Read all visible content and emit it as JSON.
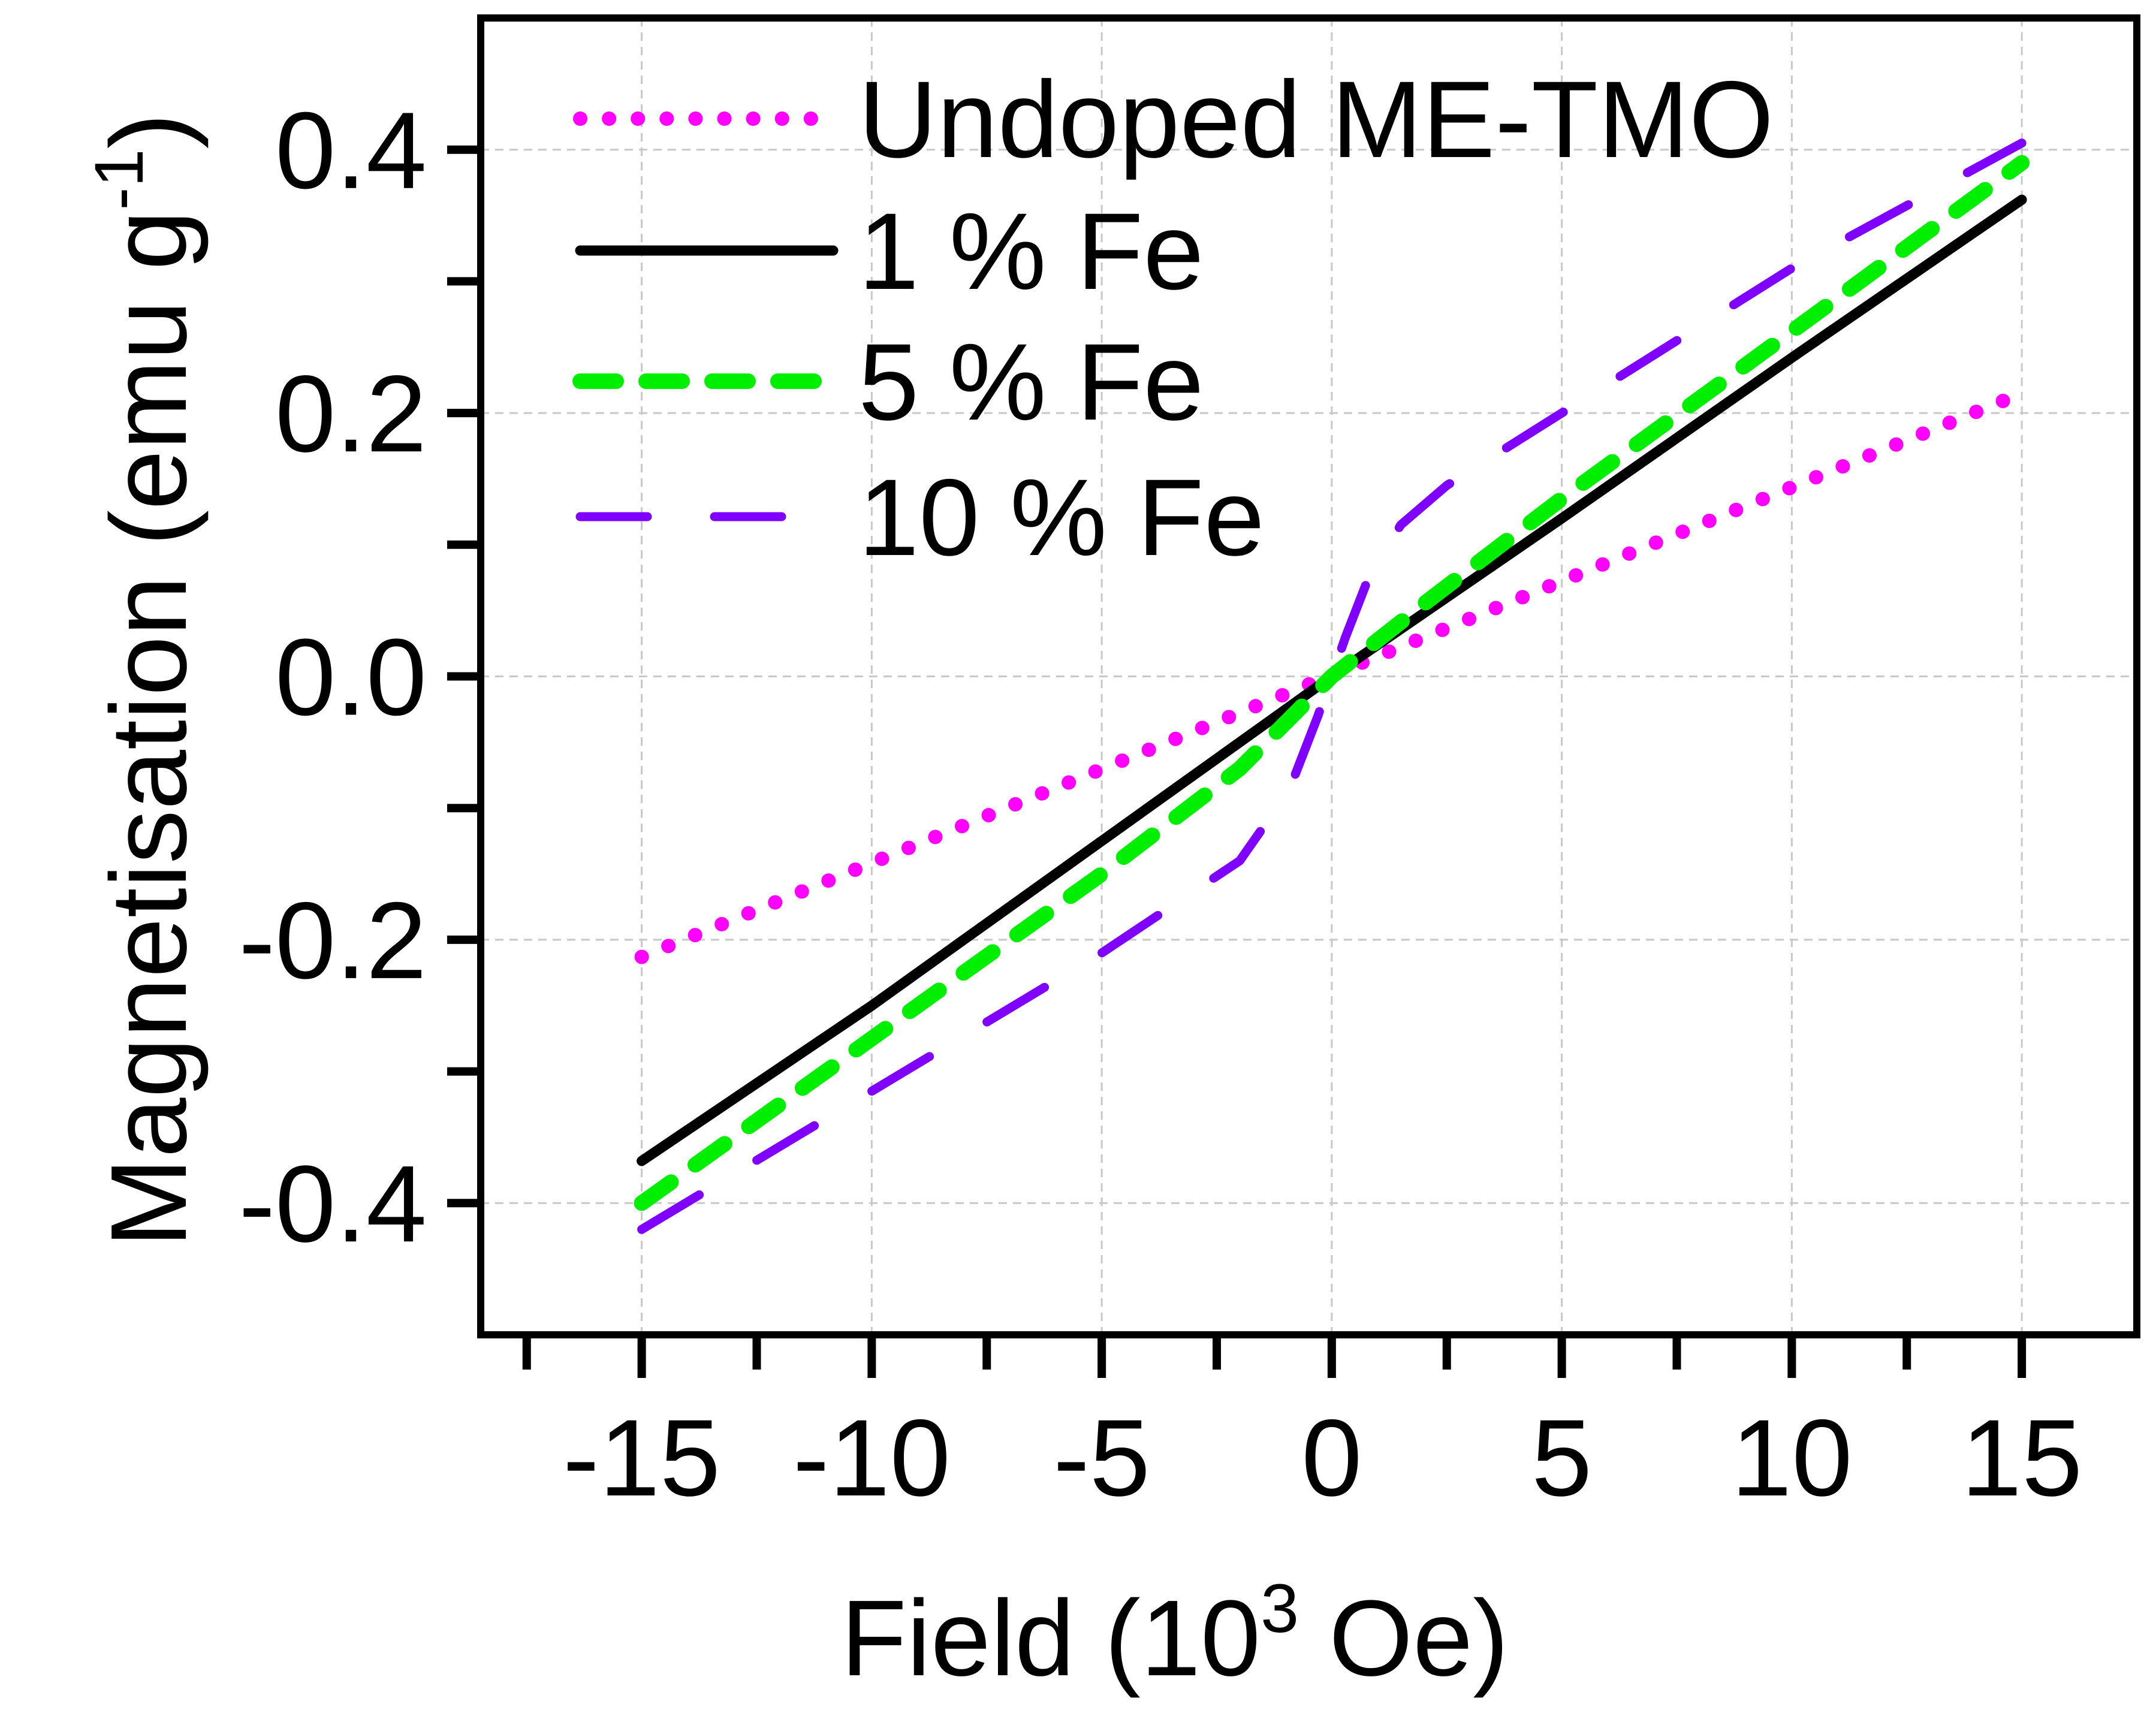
{
  "chart_data": {
    "type": "line",
    "title": "",
    "xlabel": "Field (10",
    "xlabel_sup": "3",
    "xlabel_end": " Oe)",
    "ylabel": "Magnetisation (emu g",
    "ylabel_sup": "-1",
    "ylabel_end": ")",
    "xlim": [
      -18.5,
      17.5
    ],
    "ylim": [
      -0.5,
      0.5
    ],
    "x_ticks": [
      -15,
      -10,
      -5,
      0,
      5,
      10,
      15
    ],
    "x_tick_labels": [
      "-15",
      "-10",
      "-5",
      "0",
      "5",
      "10",
      "15"
    ],
    "y_ticks": [
      -0.4,
      -0.2,
      0.0,
      0.2,
      0.4
    ],
    "y_tick_labels": [
      "-0.4",
      "-0.2",
      "0.0",
      "0.2",
      "0.4"
    ],
    "grid": true,
    "legend_position": "top-left",
    "series": [
      {
        "name": "Undoped ME-TMO",
        "style": "dotted",
        "color": "#ff00ff",
        "x": [
          -15,
          15
        ],
        "y": [
          -0.213,
          0.215
        ]
      },
      {
        "name": "1 % Fe",
        "style": "solid",
        "color": "#000000",
        "x": [
          -15,
          -10,
          -5,
          0,
          5,
          10,
          15
        ],
        "y": [
          -0.368,
          -0.25,
          -0.125,
          0.0,
          0.12,
          0.242,
          0.362
        ]
      },
      {
        "name": "5 % Fe",
        "style": "dashed",
        "color": "#00ee00",
        "x": [
          -15,
          -10,
          -5,
          -2,
          0,
          2,
          5,
          10,
          15
        ],
        "y": [
          -0.4,
          -0.275,
          -0.15,
          -0.07,
          0.0,
          0.055,
          0.135,
          0.262,
          0.39
        ]
      },
      {
        "name": "10 % Fe",
        "style": "long-dashed",
        "color": "#7f00ff",
        "x": [
          -15,
          -10,
          -5,
          -2,
          -1.5,
          -0.8,
          -0.3,
          0,
          0.3,
          0.8,
          1.5,
          2.5,
          5,
          10,
          15
        ],
        "y": [
          -0.42,
          -0.315,
          -0.21,
          -0.14,
          -0.115,
          -0.075,
          -0.03,
          0.0,
          0.03,
          0.075,
          0.115,
          0.145,
          0.2,
          0.31,
          0.405
        ]
      }
    ]
  }
}
